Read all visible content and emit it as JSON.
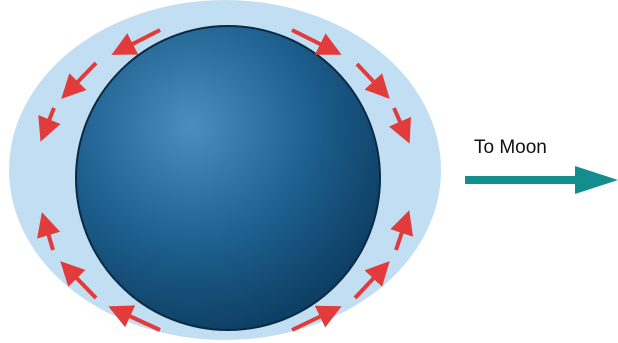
{
  "labels": {
    "to_moon": "To Moon"
  },
  "colors": {
    "background": "#ffffff",
    "ocean_bulge": "#c2def2",
    "earth_light": "#4a8fbe",
    "earth_mid": "#1d5f8e",
    "earth_dark": "#0c3c60",
    "earth_outline": "#0b2a44",
    "flow_arrow": "#e23b3b",
    "moon_arrow": "#138d8d"
  },
  "icons": {
    "flow_arrow": "arrow-icon",
    "moon_arrow": "right-arrow-icon"
  }
}
